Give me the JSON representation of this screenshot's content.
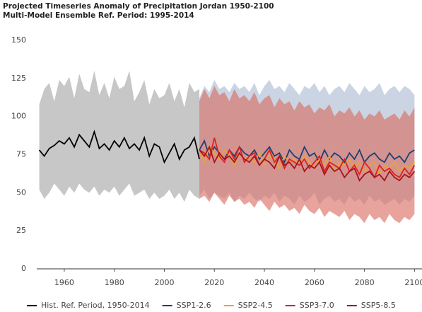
{
  "chart_data": {
    "type": "line",
    "title": "Projected Timeseries Anomaly of Precipitation Jordan 1950-2100",
    "subtitle": "Multi-Model Ensemble Ref. Period: 1995-2014",
    "xlim": [
      1949,
      2103
    ],
    "xticks": [
      1960,
      1980,
      2000,
      2020,
      2040,
      2060,
      2080,
      2100
    ],
    "ylim": [
      0,
      150
    ],
    "yticks": [
      0,
      25,
      50,
      75,
      100,
      125,
      150
    ],
    "legend": "bottom",
    "series": [
      {
        "name": "Hist. Ref. Period, 1950-2014",
        "color": "#000000",
        "band_color": "#c7c7c7",
        "x": [
          1950,
          1952,
          1954,
          1956,
          1958,
          1960,
          1962,
          1964,
          1966,
          1968,
          1970,
          1972,
          1974,
          1976,
          1978,
          1980,
          1982,
          1984,
          1986,
          1988,
          1990,
          1992,
          1994,
          1996,
          1998,
          2000,
          2002,
          2004,
          2006,
          2008,
          2010,
          2012,
          2014
        ],
        "values": [
          78,
          74,
          79,
          81,
          84,
          82,
          86,
          80,
          88,
          84,
          80,
          90,
          79,
          82,
          78,
          84,
          80,
          86,
          79,
          82,
          78,
          86,
          74,
          82,
          80,
          70,
          76,
          82,
          72,
          78,
          80,
          86,
          72
        ],
        "upper": [
          108,
          118,
          122,
          110,
          124,
          120,
          126,
          112,
          128,
          118,
          116,
          130,
          114,
          122,
          112,
          126,
          118,
          120,
          130,
          110,
          116,
          124,
          108,
          118,
          112,
          114,
          122,
          110,
          118,
          106,
          122,
          116,
          118
        ],
        "lower": [
          52,
          46,
          50,
          56,
          52,
          48,
          54,
          50,
          56,
          52,
          50,
          54,
          48,
          52,
          50,
          54,
          48,
          52,
          56,
          48,
          50,
          52,
          46,
          50,
          46,
          48,
          52,
          46,
          50,
          44,
          52,
          48,
          46
        ]
      },
      {
        "name": "SSP1-2.6",
        "color": "#1f3f6e",
        "band_color": "#a9b8d0",
        "x": [
          2014,
          2016,
          2018,
          2020,
          2022,
          2024,
          2026,
          2028,
          2030,
          2032,
          2034,
          2036,
          2038,
          2040,
          2042,
          2044,
          2046,
          2048,
          2050,
          2052,
          2054,
          2056,
          2058,
          2060,
          2062,
          2064,
          2066,
          2068,
          2070,
          2072,
          2074,
          2076,
          2078,
          2080,
          2082,
          2084,
          2086,
          2088,
          2090,
          2092,
          2094,
          2096,
          2098,
          2100
        ],
        "values": [
          78,
          84,
          74,
          80,
          76,
          72,
          78,
          74,
          80,
          76,
          74,
          78,
          72,
          76,
          80,
          74,
          76,
          70,
          78,
          74,
          72,
          80,
          74,
          76,
          70,
          78,
          72,
          76,
          74,
          70,
          76,
          72,
          78,
          70,
          74,
          76,
          72,
          70,
          76,
          72,
          74,
          70,
          76,
          78
        ],
        "upper": [
          112,
          120,
          116,
          124,
          118,
          120,
          116,
          122,
          118,
          120,
          116,
          122,
          114,
          120,
          124,
          118,
          120,
          116,
          122,
          118,
          114,
          120,
          118,
          122,
          116,
          120,
          114,
          118,
          120,
          116,
          122,
          118,
          114,
          120,
          116,
          118,
          122,
          114,
          118,
          120,
          116,
          120,
          118,
          114
        ],
        "lower": [
          48,
          52,
          46,
          50,
          48,
          46,
          50,
          44,
          48,
          46,
          50,
          46,
          44,
          48,
          46,
          50,
          44,
          48,
          46,
          42,
          48,
          44,
          46,
          50,
          42,
          46,
          48,
          44,
          46,
          42,
          48,
          44,
          46,
          42,
          48,
          44,
          46,
          42,
          44,
          46,
          42,
          46,
          44,
          48
        ]
      },
      {
        "name": "SSP2-4.5",
        "color": "#e8a33a",
        "x": [
          2014,
          2016,
          2018,
          2020,
          2022,
          2024,
          2026,
          2028,
          2030,
          2032,
          2034,
          2036,
          2038,
          2040,
          2042,
          2044,
          2046,
          2048,
          2050,
          2052,
          2054,
          2056,
          2058,
          2060,
          2062,
          2064,
          2066,
          2068,
          2070,
          2072,
          2074,
          2076,
          2078,
          2080,
          2082,
          2084,
          2086,
          2088,
          2090,
          2092,
          2094,
          2096,
          2098,
          2100
        ],
        "values": [
          78,
          70,
          80,
          76,
          72,
          78,
          74,
          68,
          76,
          72,
          74,
          70,
          76,
          68,
          74,
          72,
          66,
          74,
          70,
          72,
          68,
          74,
          70,
          66,
          72,
          68,
          74,
          64,
          70,
          68,
          72,
          66,
          70,
          64,
          68,
          70,
          62,
          68,
          66,
          70,
          64,
          68,
          66,
          70
        ]
      },
      {
        "name": "SSP3-7.0",
        "color": "#e0201e",
        "x": [
          2014,
          2016,
          2018,
          2020,
          2022,
          2024,
          2026,
          2028,
          2030,
          2032,
          2034,
          2036,
          2038,
          2040,
          2042,
          2044,
          2046,
          2048,
          2050,
          2052,
          2054,
          2056,
          2058,
          2060,
          2062,
          2064,
          2066,
          2068,
          2070,
          2072,
          2074,
          2076,
          2078,
          2080,
          2082,
          2084,
          2086,
          2088,
          2090,
          2092,
          2094,
          2096,
          2098,
          2100
        ],
        "values": [
          78,
          76,
          72,
          86,
          74,
          70,
          78,
          72,
          80,
          70,
          74,
          76,
          68,
          72,
          78,
          70,
          74,
          66,
          72,
          70,
          68,
          72,
          66,
          70,
          74,
          64,
          70,
          68,
          66,
          72,
          64,
          68,
          62,
          70,
          66,
          60,
          68,
          64,
          66,
          62,
          60,
          66,
          62,
          68
        ]
      },
      {
        "name": "SSP5-8.5",
        "color": "#a3151e",
        "band_color": "#d9685a",
        "x": [
          2014,
          2016,
          2018,
          2020,
          2022,
          2024,
          2026,
          2028,
          2030,
          2032,
          2034,
          2036,
          2038,
          2040,
          2042,
          2044,
          2046,
          2048,
          2050,
          2052,
          2054,
          2056,
          2058,
          2060,
          2062,
          2064,
          2066,
          2068,
          2070,
          2072,
          2074,
          2076,
          2078,
          2080,
          2082,
          2084,
          2086,
          2088,
          2090,
          2092,
          2094,
          2096,
          2098,
          2100
        ],
        "values": [
          78,
          74,
          80,
          70,
          76,
          72,
          74,
          70,
          76,
          72,
          70,
          74,
          68,
          72,
          70,
          66,
          74,
          68,
          70,
          66,
          72,
          64,
          68,
          66,
          70,
          62,
          68,
          64,
          66,
          60,
          64,
          66,
          58,
          62,
          64,
          60,
          62,
          58,
          64,
          60,
          58,
          62,
          60,
          64
        ],
        "upper": [
          110,
          118,
          112,
          120,
          114,
          116,
          110,
          118,
          112,
          114,
          110,
          116,
          108,
          112,
          114,
          106,
          112,
          108,
          110,
          104,
          110,
          106,
          108,
          102,
          106,
          104,
          108,
          100,
          104,
          102,
          106,
          100,
          104,
          98,
          102,
          100,
          104,
          98,
          100,
          102,
          98,
          104,
          100,
          106
        ],
        "lower": [
          46,
          48,
          44,
          50,
          46,
          42,
          48,
          44,
          46,
          42,
          44,
          40,
          46,
          42,
          38,
          44,
          40,
          42,
          38,
          40,
          36,
          42,
          38,
          36,
          40,
          34,
          38,
          36,
          34,
          38,
          32,
          36,
          34,
          30,
          36,
          32,
          34,
          30,
          36,
          32,
          30,
          34,
          32,
          36
        ]
      }
    ]
  }
}
